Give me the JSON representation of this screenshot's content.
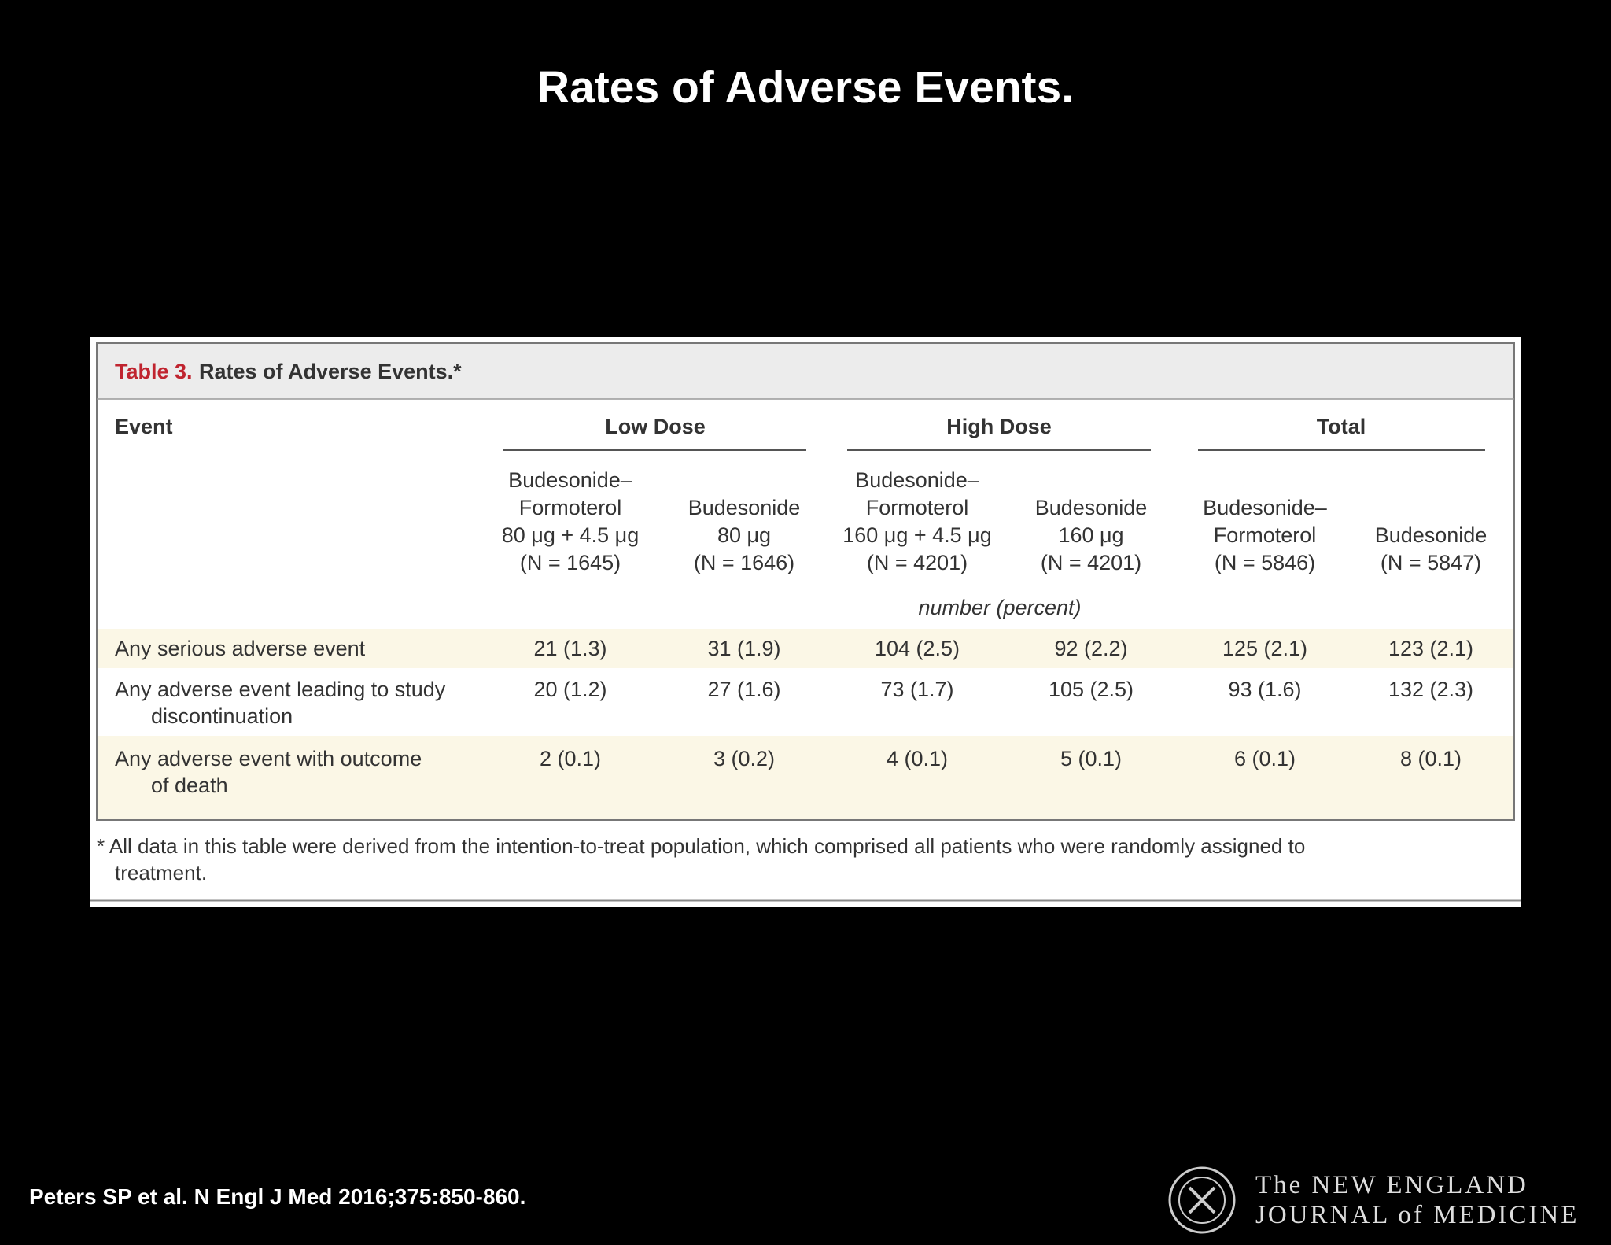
{
  "title": "Rates of Adverse Events.",
  "table": {
    "label": "Table 3.",
    "caption": "Rates of Adverse Events.*",
    "event_header": "Event",
    "groups": [
      "Low Dose",
      "High Dose",
      "Total"
    ],
    "columns": [
      [
        "Budesonide–",
        "Formoterol",
        "80 μg + 4.5 μg",
        "(N = 1645)"
      ],
      [
        "Budesonide",
        "80 μg",
        "(N = 1646)"
      ],
      [
        "Budesonide–",
        "Formoterol",
        "160 μg + 4.5 μg",
        "(N = 4201)"
      ],
      [
        "Budesonide",
        "160 μg",
        "(N = 4201)"
      ],
      [
        "Budesonide–",
        "Formoterol",
        "(N = 5846)"
      ],
      [
        "Budesonide",
        "(N = 5847)"
      ]
    ],
    "unit": "number (percent)",
    "rows": [
      {
        "event": [
          "Any serious adverse event"
        ],
        "cells": [
          "21 (1.3)",
          "31 (1.9)",
          "104 (2.5)",
          "92 (2.2)",
          "125 (2.1)",
          "123 (2.1)"
        ]
      },
      {
        "event": [
          "Any adverse event leading to study",
          "discontinuation"
        ],
        "cells": [
          "20 (1.2)",
          "27 (1.6)",
          "73 (1.7)",
          "105 (2.5)",
          "93 (1.6)",
          "132 (2.3)"
        ]
      },
      {
        "event": [
          "Any adverse event with outcome",
          "of death"
        ],
        "cells": [
          "2 (0.1)",
          "3 (0.2)",
          "4 (0.1)",
          "5 (0.1)",
          "6 (0.1)",
          "8 (0.1)"
        ]
      }
    ],
    "footnote": [
      "* All data in this table were derived from the intention-to-treat population, which comprised all patients who were randomly assigned to",
      "treatment."
    ]
  },
  "citation": "Peters SP et al. N Engl J Med 2016;375:850-860.",
  "logo": [
    "The NEW ENGLAND",
    "JOURNAL of MEDICINE"
  ]
}
